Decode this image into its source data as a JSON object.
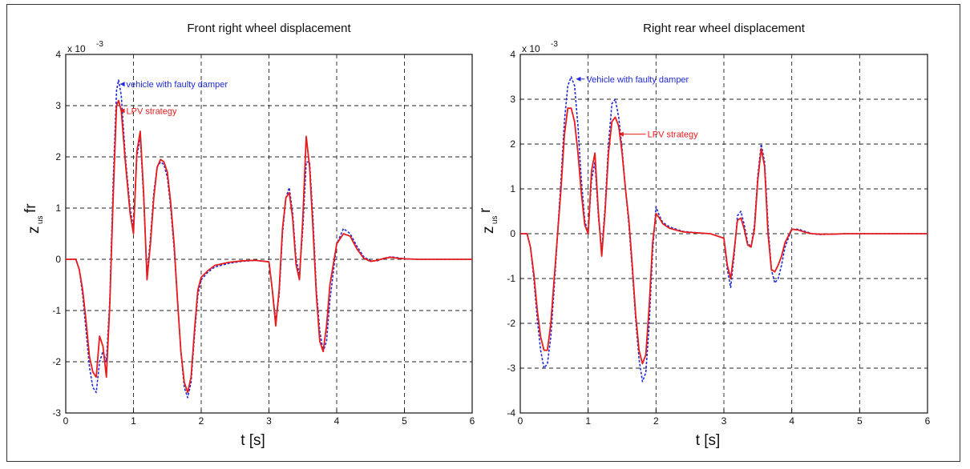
{
  "chart_data": [
    {
      "type": "line",
      "title": "Front right wheel displacement",
      "xlabel": "t [s]",
      "ylabel_main": "z",
      "ylabel_sub": "us",
      "ylabel_sup": "fr",
      "y_multiplier": "x 10",
      "y_exponent": "-3",
      "xlim": [
        0,
        6
      ],
      "ylim": [
        -3,
        4
      ],
      "xticks": [
        "0",
        "1",
        "2",
        "3",
        "4",
        "5",
        "6"
      ],
      "yticks": [
        "-3",
        "-2",
        "-1",
        "0",
        "1",
        "2",
        "3",
        "4"
      ],
      "grid": true,
      "series": [
        {
          "name": "vehicle with faulty damper",
          "color": "#1f2bd6",
          "style": "dotted",
          "x": [
            0,
            0.15,
            0.2,
            0.25,
            0.3,
            0.35,
            0.4,
            0.45,
            0.5,
            0.55,
            0.6,
            0.65,
            0.7,
            0.75,
            0.78,
            0.82,
            0.88,
            0.95,
            1.0,
            1.05,
            1.1,
            1.15,
            1.2,
            1.25,
            1.3,
            1.35,
            1.4,
            1.45,
            1.5,
            1.55,
            1.6,
            1.65,
            1.7,
            1.75,
            1.8,
            1.85,
            1.9,
            1.95,
            2.0,
            2.1,
            2.2,
            2.4,
            2.6,
            2.8,
            3.0,
            3.05,
            3.1,
            3.15,
            3.2,
            3.25,
            3.3,
            3.35,
            3.4,
            3.45,
            3.5,
            3.55,
            3.6,
            3.65,
            3.7,
            3.75,
            3.8,
            3.85,
            3.9,
            4.0,
            4.1,
            4.2,
            4.3,
            4.4,
            4.5,
            4.6,
            4.7,
            4.8,
            4.9,
            5.0,
            5.2,
            5.5,
            6.0
          ],
          "y": [
            0,
            0,
            -0.2,
            -0.7,
            -1.4,
            -2.1,
            -2.5,
            -2.6,
            -2.0,
            -1.8,
            -2.0,
            -0.8,
            1.5,
            3.3,
            3.5,
            3.2,
            2.0,
            1.0,
            0.6,
            2.0,
            2.4,
            1.2,
            -0.3,
            0.4,
            1.3,
            1.8,
            1.9,
            1.85,
            1.6,
            1.0,
            0.2,
            -0.8,
            -1.8,
            -2.5,
            -2.7,
            -2.4,
            -1.5,
            -0.7,
            -0.4,
            -0.25,
            -0.15,
            -0.08,
            -0.04,
            -0.02,
            -0.05,
            -0.6,
            -1.2,
            -0.7,
            0.5,
            1.2,
            1.4,
            0.9,
            0.0,
            -0.3,
            0.6,
            1.9,
            1.9,
            0.8,
            -0.6,
            -1.4,
            -1.8,
            -1.6,
            -0.8,
            0.3,
            0.6,
            0.5,
            0.25,
            0.05,
            -0.03,
            -0.03,
            0.02,
            0.05,
            0.03,
            0.01,
            0,
            0,
            0
          ]
        },
        {
          "name": "LPV strategy",
          "color": "#e81c1c",
          "style": "solid",
          "x": [
            0,
            0.15,
            0.2,
            0.25,
            0.3,
            0.35,
            0.4,
            0.45,
            0.5,
            0.55,
            0.6,
            0.65,
            0.7,
            0.75,
            0.78,
            0.82,
            0.88,
            0.95,
            1.0,
            1.05,
            1.1,
            1.15,
            1.2,
            1.25,
            1.3,
            1.35,
            1.4,
            1.45,
            1.5,
            1.55,
            1.6,
            1.65,
            1.7,
            1.75,
            1.8,
            1.85,
            1.9,
            1.95,
            2.0,
            2.1,
            2.2,
            2.4,
            2.6,
            2.8,
            3.0,
            3.05,
            3.1,
            3.15,
            3.2,
            3.25,
            3.3,
            3.35,
            3.4,
            3.45,
            3.5,
            3.55,
            3.6,
            3.65,
            3.7,
            3.75,
            3.8,
            3.85,
            3.9,
            4.0,
            4.1,
            4.2,
            4.3,
            4.4,
            4.5,
            4.6,
            4.7,
            4.8,
            4.9,
            5.0,
            5.2,
            5.5,
            6.0
          ],
          "y": [
            0,
            0,
            -0.2,
            -0.6,
            -1.2,
            -1.9,
            -2.2,
            -2.3,
            -1.5,
            -1.7,
            -2.3,
            -0.9,
            1.2,
            3.0,
            3.1,
            2.9,
            1.9,
            0.9,
            0.5,
            2.1,
            2.5,
            1.3,
            -0.4,
            0.3,
            1.2,
            1.8,
            1.95,
            1.9,
            1.7,
            1.1,
            0.3,
            -0.8,
            -1.8,
            -2.4,
            -2.6,
            -2.3,
            -1.4,
            -0.6,
            -0.35,
            -0.22,
            -0.12,
            -0.06,
            -0.03,
            -0.02,
            -0.05,
            -0.6,
            -1.3,
            -0.6,
            0.6,
            1.2,
            1.3,
            0.8,
            -0.1,
            -0.4,
            0.8,
            2.4,
            1.8,
            0.6,
            -0.7,
            -1.6,
            -1.8,
            -1.3,
            -0.5,
            0.3,
            0.5,
            0.45,
            0.2,
            0.02,
            -0.04,
            -0.02,
            0.02,
            0.04,
            0.02,
            0.01,
            0,
            0,
            0
          ]
        }
      ],
      "annotations": [
        {
          "text": "vehicle with faulty damper",
          "color": "#1f2bd6",
          "x": 0.8,
          "y": 3.42,
          "tx": 0.87,
          "ty": 3.42
        },
        {
          "text": "LPV strategy",
          "color": "#e81c1c",
          "x": 0.8,
          "y": 2.9,
          "tx": 0.87,
          "ty": 2.9
        }
      ]
    },
    {
      "type": "line",
      "title": "Right rear wheel displacement",
      "xlabel": "t [s]",
      "ylabel_main": "z",
      "ylabel_sub": "us",
      "ylabel_sup": "r",
      "y_multiplier": "x 10",
      "y_exponent": "-3",
      "xlim": [
        0,
        6
      ],
      "ylim": [
        -4,
        4
      ],
      "xticks": [
        "0",
        "1",
        "2",
        "3",
        "4",
        "5",
        "6"
      ],
      "yticks": [
        "-4",
        "-3",
        "-2",
        "-1",
        "0",
        "1",
        "2",
        "3",
        "4"
      ],
      "grid": true,
      "series": [
        {
          "name": "Vehicle with faulty damper",
          "color": "#1f2bd6",
          "style": "dotted",
          "x": [
            0,
            0.1,
            0.15,
            0.2,
            0.25,
            0.3,
            0.35,
            0.4,
            0.45,
            0.5,
            0.55,
            0.6,
            0.65,
            0.7,
            0.75,
            0.8,
            0.85,
            0.9,
            0.95,
            1.0,
            1.05,
            1.1,
            1.15,
            1.2,
            1.25,
            1.3,
            1.35,
            1.4,
            1.45,
            1.5,
            1.55,
            1.6,
            1.65,
            1.7,
            1.75,
            1.8,
            1.85,
            1.9,
            1.95,
            2.0,
            2.05,
            2.1,
            2.2,
            2.4,
            2.6,
            2.8,
            3.0,
            3.05,
            3.1,
            3.15,
            3.2,
            3.25,
            3.3,
            3.35,
            3.4,
            3.45,
            3.5,
            3.55,
            3.6,
            3.65,
            3.7,
            3.75,
            3.8,
            3.85,
            3.9,
            4.0,
            4.1,
            4.2,
            4.3,
            4.4,
            4.6,
            4.8,
            5.0,
            5.5,
            6.0
          ],
          "y": [
            0,
            0,
            -0.3,
            -1.0,
            -1.9,
            -2.6,
            -3.0,
            -2.9,
            -2.3,
            -1.2,
            0.0,
            1.2,
            2.5,
            3.3,
            3.5,
            3.3,
            2.4,
            1.2,
            0.3,
            0.0,
            1.2,
            1.6,
            0.4,
            -0.4,
            0.6,
            2.0,
            2.9,
            3.0,
            2.6,
            1.9,
            1.0,
            0.2,
            -0.8,
            -1.9,
            -2.8,
            -3.3,
            -3.1,
            -2.0,
            -0.4,
            0.6,
            0.4,
            0.25,
            0.15,
            0.05,
            0.02,
            0.0,
            -0.1,
            -0.8,
            -1.2,
            -0.5,
            0.4,
            0.5,
            0.2,
            -0.2,
            -0.3,
            0.2,
            1.3,
            2.0,
            1.6,
            0.2,
            -0.8,
            -1.1,
            -1.0,
            -0.7,
            -0.3,
            0.1,
            0.1,
            0.05,
            0.0,
            -0.02,
            -0.01,
            0.0,
            0.0,
            0.0,
            0.0
          ]
        },
        {
          "name": "LPV strategy",
          "color": "#e81c1c",
          "style": "solid",
          "x": [
            0,
            0.1,
            0.15,
            0.2,
            0.25,
            0.3,
            0.35,
            0.4,
            0.45,
            0.5,
            0.55,
            0.6,
            0.65,
            0.7,
            0.75,
            0.8,
            0.85,
            0.9,
            0.95,
            1.0,
            1.05,
            1.1,
            1.15,
            1.2,
            1.25,
            1.3,
            1.35,
            1.4,
            1.45,
            1.5,
            1.55,
            1.6,
            1.65,
            1.7,
            1.75,
            1.8,
            1.85,
            1.9,
            1.95,
            2.0,
            2.05,
            2.1,
            2.2,
            2.4,
            2.6,
            2.8,
            3.0,
            3.05,
            3.1,
            3.15,
            3.2,
            3.25,
            3.3,
            3.35,
            3.4,
            3.45,
            3.5,
            3.55,
            3.6,
            3.65,
            3.7,
            3.75,
            3.8,
            3.85,
            3.9,
            4.0,
            4.1,
            4.2,
            4.3,
            4.4,
            4.6,
            4.8,
            5.0,
            5.5,
            6.0
          ],
          "y": [
            0,
            0,
            -0.3,
            -0.9,
            -1.7,
            -2.3,
            -2.6,
            -2.6,
            -2.0,
            -1.0,
            0.0,
            1.0,
            2.2,
            2.8,
            2.8,
            2.5,
            1.8,
            0.9,
            0.2,
            0.0,
            1.4,
            1.8,
            0.5,
            -0.5,
            0.5,
            1.8,
            2.5,
            2.6,
            2.4,
            1.8,
            1.0,
            0.3,
            -0.7,
            -1.8,
            -2.6,
            -2.9,
            -2.7,
            -1.6,
            -0.2,
            0.45,
            0.35,
            0.22,
            0.12,
            0.04,
            0.02,
            0.0,
            -0.1,
            -0.7,
            -1.0,
            -0.4,
            0.3,
            0.35,
            0.1,
            -0.25,
            -0.3,
            0.1,
            1.2,
            1.9,
            1.5,
            0.0,
            -0.8,
            -0.85,
            -0.7,
            -0.5,
            -0.2,
            0.1,
            0.08,
            0.03,
            0.0,
            -0.01,
            -0.01,
            0.0,
            0.0,
            0.0,
            0.0
          ]
        }
      ],
      "annotations": [
        {
          "text": "Vehicle with faulty damper",
          "color": "#1f2bd6",
          "x": 0.82,
          "y": 3.45,
          "tx": 0.95,
          "ty": 3.45
        },
        {
          "text": "LPV strategy",
          "color": "#e81c1c",
          "x": 1.45,
          "y": 2.22,
          "tx": 1.85,
          "ty": 2.22
        }
      ]
    }
  ]
}
